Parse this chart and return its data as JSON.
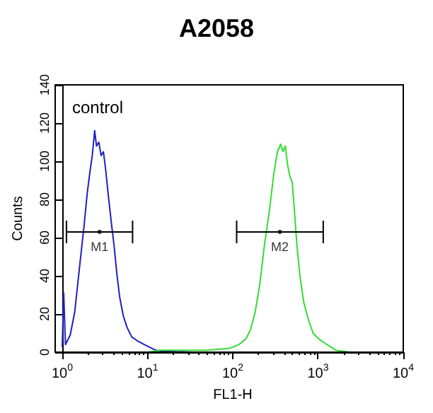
{
  "chart_data": {
    "type": "line",
    "title": "A2058",
    "xlabel": "FL1-H",
    "ylabel": "Counts",
    "log": "x",
    "xlim": [
      1,
      10000
    ],
    "xticks": [
      {
        "value": 1,
        "label": "10$^{0}$"
      },
      {
        "value": 10,
        "label": "10$^{1}$"
      },
      {
        "value": 100,
        "label": "10$^{2}$"
      },
      {
        "value": 1000,
        "label": "10$^{3}$"
      },
      {
        "value": 10000,
        "label": "10$^{4}$"
      }
    ],
    "ylim": [
      0,
      140
    ],
    "yticks": [
      0,
      20,
      40,
      60,
      80,
      100,
      120,
      140
    ],
    "grid": false,
    "marker": "none",
    "annotations": [
      "control",
      {
        "text": "M1",
        "x": 2.74,
        "y": 63
      },
      {
        "text": "M2",
        "x": 357,
        "y": 63
      }
    ],
    "series": [
      {
        "type": "scatter",
        "marker": "circle",
        "color": "#000000",
        "x": [
          2.74,
          357
        ],
        "values": [
          63,
          63
        ],
        "xerrors": [
          [
            1.12,
            6.68
          ],
          [
            111,
            1151
          ]
        ]
      },
      {
        "color": "#2020c0",
        "x": [
          1,
          1.04,
          1.09,
          1.24,
          1.4,
          1.59,
          1.8,
          1.96,
          2.12,
          2.25,
          2.4,
          2.52,
          2.68,
          2.86,
          3.04,
          3.24,
          3.49,
          3.76,
          4.05,
          4.37,
          4.71,
          5.2,
          5.75,
          6.52,
          7.57,
          9.14,
          12.5,
          16,
          34
        ],
        "values": [
          3,
          31,
          4,
          9,
          21,
          44,
          66,
          83,
          95,
          103,
          116,
          108,
          110,
          103,
          105,
          95,
          81,
          68,
          56,
          41,
          29,
          19,
          13,
          8,
          6,
          4,
          1,
          0.5,
          0
        ]
      },
      {
        "color": "#33dd33",
        "x": [
          10,
          14.2,
          50,
          92,
          118,
          143,
          162,
          183,
          208,
          235,
          267,
          302,
          334,
          365,
          388,
          413,
          440,
          468,
          498,
          531,
          565,
          617,
          681,
          771,
          875,
          1016,
          1272,
          1633,
          2377
        ],
        "values": [
          0,
          1,
          1,
          2,
          4,
          7,
          12,
          21,
          36,
          56,
          73,
          93,
          105,
          109,
          105,
          108,
          98,
          92,
          89,
          73,
          56,
          39,
          26,
          17,
          10,
          7,
          4,
          1,
          0
        ]
      }
    ]
  }
}
